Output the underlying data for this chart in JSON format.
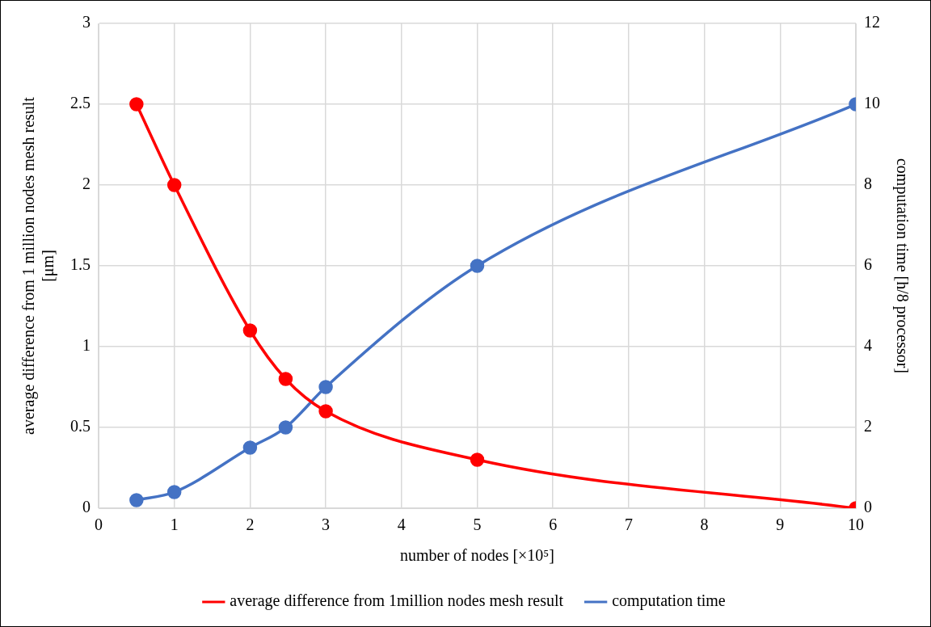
{
  "chart_data": {
    "type": "line",
    "xlabel": "number of nodes [×10⁵]",
    "ylabel": "average difference from 1 million nodes mesh result [μm]",
    "y2label": "computation time [h/8 processor]",
    "xlim": [
      0,
      10
    ],
    "xticks": [
      0,
      1,
      2,
      3,
      4,
      5,
      6,
      7,
      8,
      9,
      10
    ],
    "ylim": [
      0,
      3
    ],
    "yticks": [
      0,
      0.5,
      1,
      1.5,
      2,
      2.5,
      3
    ],
    "y2lim": [
      0,
      12
    ],
    "y2ticks": [
      0,
      2,
      4,
      6,
      8,
      10,
      12
    ],
    "grid": true,
    "legend": "bottom",
    "marker": "circle",
    "line_style": "solid",
    "series": [
      {
        "name": "average difference from 1million nodes mesh result",
        "color": "#ff0000",
        "x": [
          0.5,
          1,
          2,
          2.47,
          3,
          5,
          10
        ],
        "values": [
          2.5,
          2,
          1.1,
          0.8,
          0.6,
          0.3,
          0
        ]
      },
      {
        "name": "computation time",
        "color": "#4472c4",
        "axis": "y2",
        "x": [
          0.5,
          1,
          2,
          2.47,
          3,
          5,
          10
        ],
        "values": [
          0.2,
          0.4,
          1.5,
          2,
          3,
          6,
          10
        ]
      }
    ]
  }
}
